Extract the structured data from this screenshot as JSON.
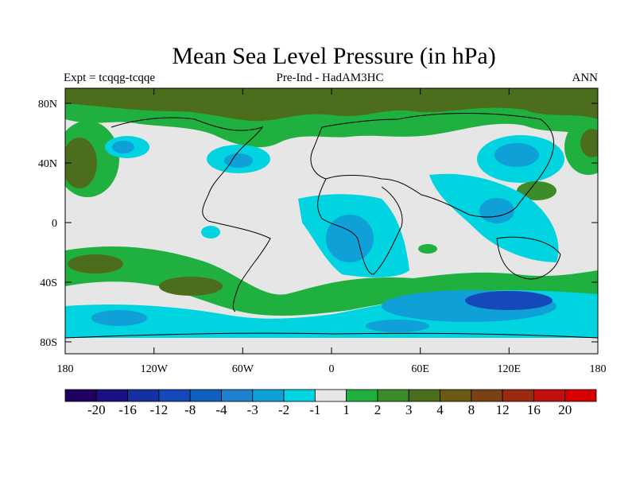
{
  "title": "Mean Sea Level Pressure (in hPa)",
  "subtitle_left": "Expt = tcqqg-tcqqe",
  "subtitle_center": "Pre-Ind - HadAM3HC",
  "subtitle_right": "ANN",
  "lat_labels": [
    "80N",
    "40N",
    "0",
    "40S",
    "80S"
  ],
  "lon_labels": [
    "180",
    "120W",
    "60W",
    "0",
    "60E",
    "120E",
    "180"
  ],
  "colorbar": {
    "labels": [
      "-20",
      "-16",
      "-12",
      "-8",
      "-4",
      "-3",
      "-2",
      "-1",
      "1",
      "2",
      "3",
      "4",
      "8",
      "12",
      "16",
      "20"
    ],
    "colors": [
      "#200060",
      "#1a1080",
      "#1530a0",
      "#1548b8",
      "#1060c0",
      "#2080d0",
      "#10a0d8",
      "#00d4e0",
      "#e6e6e6",
      "#20b040",
      "#3c8c2c",
      "#4c6e1c",
      "#6a5a14",
      "#7a4214",
      "#9a2a10",
      "#c01010",
      "#d80000"
    ]
  }
}
